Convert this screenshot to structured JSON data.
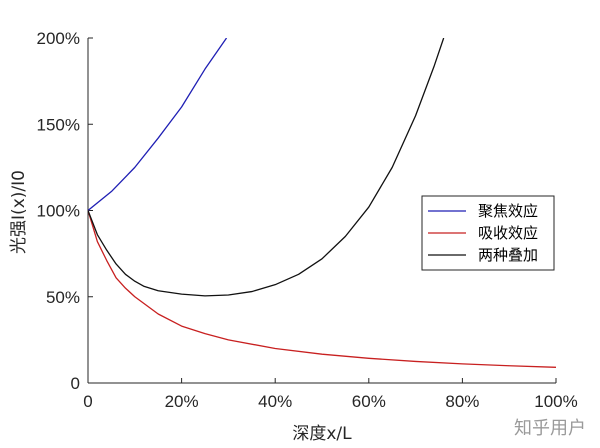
{
  "chart_data": {
    "type": "line",
    "xlabel": "深度x/L",
    "ylabel": "光强I(x)/I0",
    "xlim": [
      0,
      1
    ],
    "ylim": [
      0,
      2
    ],
    "x_ticks": [
      "0",
      "20%",
      "40%",
      "60%",
      "80%",
      "100%"
    ],
    "y_ticks": [
      "0",
      "50%",
      "100%",
      "150%",
      "200%"
    ],
    "legend_position": "right",
    "grid": false,
    "series": [
      {
        "name": "聚焦效应",
        "color": "#1f1fb4",
        "points": [
          [
            0,
            1.0
          ],
          [
            0.05,
            1.11
          ],
          [
            0.1,
            1.25
          ],
          [
            0.15,
            1.42
          ],
          [
            0.2,
            1.6
          ],
          [
            0.25,
            1.82
          ],
          [
            0.296,
            2.0
          ]
        ]
      },
      {
        "name": "吸收效应",
        "color": "#c82020",
        "points": [
          [
            0,
            1.0
          ],
          [
            0.02,
            0.82
          ],
          [
            0.04,
            0.71
          ],
          [
            0.06,
            0.61
          ],
          [
            0.08,
            0.55
          ],
          [
            0.1,
            0.5
          ],
          [
            0.15,
            0.4
          ],
          [
            0.2,
            0.33
          ],
          [
            0.25,
            0.286
          ],
          [
            0.3,
            0.25
          ],
          [
            0.4,
            0.2
          ],
          [
            0.5,
            0.167
          ],
          [
            0.6,
            0.143
          ],
          [
            0.7,
            0.125
          ],
          [
            0.8,
            0.111
          ],
          [
            0.9,
            0.1
          ],
          [
            1.0,
            0.091
          ]
        ]
      },
      {
        "name": "两种叠加",
        "color": "#111111",
        "points": [
          [
            0,
            1.0
          ],
          [
            0.02,
            0.86
          ],
          [
            0.04,
            0.77
          ],
          [
            0.06,
            0.69
          ],
          [
            0.08,
            0.63
          ],
          [
            0.1,
            0.59
          ],
          [
            0.12,
            0.56
          ],
          [
            0.15,
            0.535
          ],
          [
            0.2,
            0.515
          ],
          [
            0.25,
            0.505
          ],
          [
            0.3,
            0.51
          ],
          [
            0.35,
            0.53
          ],
          [
            0.4,
            0.57
          ],
          [
            0.45,
            0.63
          ],
          [
            0.5,
            0.72
          ],
          [
            0.55,
            0.85
          ],
          [
            0.6,
            1.02
          ],
          [
            0.65,
            1.25
          ],
          [
            0.7,
            1.55
          ],
          [
            0.74,
            1.84
          ],
          [
            0.76,
            2.0
          ]
        ]
      }
    ]
  },
  "watermark": "知乎用户"
}
